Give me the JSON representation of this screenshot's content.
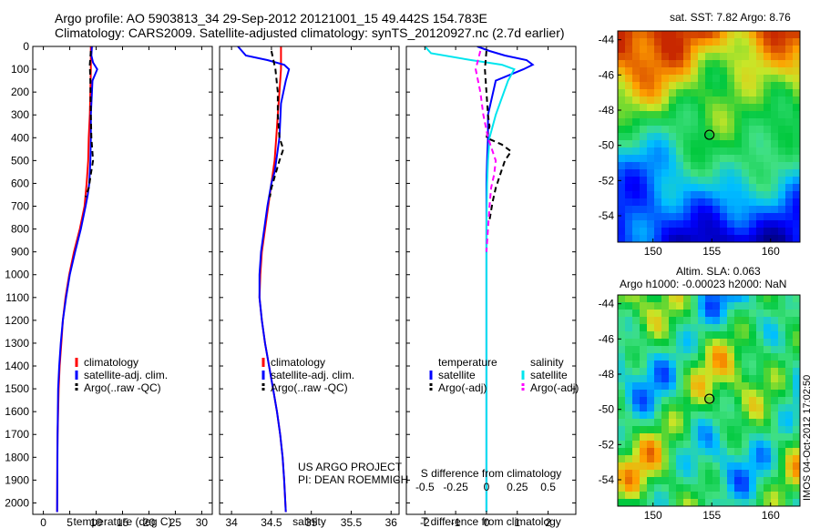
{
  "header": {
    "title_line1": "Argo profile: AO 5903813_34 29-Sep-2012 20121001_15 49.442S 154.783E",
    "title_line2": "Climatology: CARS2009. Satellite-adjusted climatology: synTS_20120927.nc (2.7d earlier)"
  },
  "colors": {
    "climatology": "#ff0000",
    "satellite": "#0000ff",
    "argo": "#000000",
    "salinity_satellite": "#00e5ee",
    "salinity_argo": "#ff00ff"
  },
  "chart_data": [
    {
      "type": "line",
      "panel": "temperature",
      "xlabel": "temperature (deg C)",
      "xticks": [
        "0",
        "5",
        "10",
        "15",
        "20",
        "25",
        "30"
      ],
      "xlim": [
        -2,
        32
      ],
      "ylim": [
        2050,
        0
      ],
      "yticks": [
        "0",
        "100",
        "200",
        "300",
        "400",
        "500",
        "600",
        "700",
        "800",
        "900",
        "1000",
        "1100",
        "1200",
        "1300",
        "1400",
        "1500",
        "1600",
        "1700",
        "1800",
        "1900",
        "2000"
      ],
      "y_inverted": true,
      "legend": [
        "climatology",
        "satellite-adj. clim.",
        "Argo(..raw -QC)"
      ],
      "legend_position": "lower-right",
      "series": [
        {
          "name": "climatology",
          "style": "solid",
          "color": "#ff0000",
          "x": [
            9.0,
            9.0,
            8.9,
            8.8,
            8.6,
            8.5,
            8.2,
            7.8,
            6.9,
            5.8,
            4.9,
            4.2,
            3.7,
            3.4,
            3.1,
            2.9,
            2.8,
            2.7,
            2.65,
            2.6
          ],
          "y": [
            0,
            100,
            200,
            300,
            400,
            500,
            600,
            700,
            800,
            900,
            1000,
            1100,
            1200,
            1300,
            1400,
            1500,
            1600,
            1700,
            1800,
            2040
          ]
        },
        {
          "name": "satellite-adj. clim.",
          "style": "solid",
          "color": "#0000ff",
          "x": [
            9.2,
            9.1,
            9.4,
            10.2,
            9.3,
            9.0,
            9.0,
            8.9,
            8.7,
            8.4,
            8.0,
            7.1,
            6.0,
            5.0,
            4.3,
            3.7,
            3.3,
            3.0,
            2.8,
            2.7,
            2.6
          ],
          "y": [
            0,
            40,
            70,
            100,
            150,
            300,
            400,
            500,
            600,
            650,
            700,
            800,
            900,
            1000,
            1100,
            1200,
            1300,
            1400,
            1500,
            1700,
            2040
          ]
        },
        {
          "name": "Argo(..raw -QC)",
          "style": "dashed",
          "color": "#000000",
          "x": [
            9.0,
            8.8,
            8.9,
            9.0,
            9.1,
            9.4,
            9.0,
            8.6,
            8.0
          ],
          "y": [
            20,
            80,
            150,
            300,
            400,
            500,
            560,
            620,
            660
          ]
        }
      ]
    },
    {
      "type": "line",
      "panel": "salinity",
      "xlabel": "salinity",
      "xticks": [
        "34",
        "34.5",
        "35",
        "35.5",
        "36"
      ],
      "xlim": [
        33.85,
        36.1
      ],
      "ylim": [
        2050,
        0
      ],
      "y_inverted": true,
      "legend": [
        "climatology",
        "satellite-adj. clim.",
        "Argo(..raw -QC)"
      ],
      "legend_position": "lower-right",
      "annotation": [
        "US ARGO PROJECT",
        "PI: DEAN ROEMMICH"
      ],
      "series": [
        {
          "name": "climatology",
          "style": "solid",
          "color": "#ff0000",
          "x": [
            34.62,
            34.62,
            34.6,
            34.58,
            34.56,
            34.54,
            34.5,
            34.46,
            34.42,
            34.38,
            34.36,
            34.35,
            34.38,
            34.42,
            34.47,
            34.52,
            34.57,
            34.61,
            34.64,
            34.66,
            34.68
          ],
          "y": [
            0,
            100,
            200,
            300,
            400,
            500,
            600,
            700,
            800,
            900,
            1000,
            1100,
            1200,
            1300,
            1400,
            1500,
            1600,
            1700,
            1800,
            1900,
            2040
          ]
        },
        {
          "name": "satellite-adj. clim.",
          "style": "solid",
          "color": "#0000ff",
          "x": [
            34.08,
            34.18,
            34.45,
            34.66,
            34.72,
            34.68,
            34.62,
            34.6,
            34.56,
            34.54,
            34.5,
            34.45,
            34.41,
            34.37,
            34.35,
            34.35,
            34.38,
            34.42,
            34.47,
            34.52,
            34.57,
            34.61,
            34.64,
            34.66,
            34.68
          ],
          "y": [
            0,
            40,
            60,
            80,
            100,
            150,
            250,
            400,
            500,
            550,
            600,
            700,
            800,
            900,
            1000,
            1100,
            1200,
            1300,
            1400,
            1500,
            1600,
            1700,
            1800,
            1900,
            2040
          ]
        },
        {
          "name": "Argo(..raw -QC)",
          "style": "dashed",
          "color": "#000000",
          "x": [
            34.5,
            34.55,
            34.58,
            34.58,
            34.6,
            34.65,
            34.6,
            34.55,
            34.5,
            34.48
          ],
          "y": [
            20,
            100,
            200,
            300,
            400,
            450,
            500,
            560,
            620,
            660
          ]
        }
      ]
    },
    {
      "type": "line",
      "panel": "differences",
      "xlabel": "T difference from climatology",
      "xlabel_top": "S difference from climatology",
      "xticks": [
        "-2",
        "-1",
        "0",
        "1",
        "2"
      ],
      "xticks_top": [
        "-0.5",
        "-0.25",
        "0",
        "0.25",
        "0.5"
      ],
      "xlim": [
        -2.6,
        2.9
      ],
      "ylim": [
        2050,
        0
      ],
      "y_inverted": true,
      "legend_temperature_title": "temperature",
      "legend_salinity_title": "salinity",
      "legend_temperature": [
        "satellite",
        "Argo(-adj)"
      ],
      "legend_salinity": [
        "satellite",
        "Argo(-adj)"
      ],
      "series": [
        {
          "name": "satellite",
          "group": "temperature",
          "style": "solid",
          "color": "#0000ff",
          "x": [
            -0.3,
            0.1,
            0.6,
            1.3,
            1.5,
            1.2,
            0.3,
            0.05,
            0.05,
            0.02,
            0.0,
            0.0,
            0.0,
            0.0,
            0.0,
            0.0,
            0.0,
            0.0,
            0.0,
            0.0,
            0.0
          ],
          "y": [
            0,
            20,
            40,
            60,
            80,
            100,
            150,
            300,
            400,
            500,
            600,
            700,
            800,
            900,
            1000,
            1200,
            1400,
            1600,
            1800,
            1900,
            2040
          ]
        },
        {
          "name": "satellite",
          "group": "salinity",
          "style": "solid",
          "color": "#00e5ee",
          "x": [
            -2.0,
            -1.8,
            -0.5,
            0.5,
            0.9,
            0.7,
            0.3,
            0.1,
            0.05,
            0.02,
            0.0,
            0.0,
            0.0,
            0.0,
            0.0
          ],
          "y": [
            0,
            30,
            60,
            80,
            100,
            150,
            300,
            400,
            500,
            600,
            800,
            1000,
            1400,
            1800,
            2040
          ]
        },
        {
          "name": "Argo(-adj)",
          "group": "temperature",
          "style": "dashed",
          "color": "#000000",
          "x": [
            0.0,
            -0.05,
            0.0,
            0.05,
            0.1,
            0.0,
            0.5,
            0.8,
            0.6,
            0.45,
            0.3,
            0.2,
            0.1
          ],
          "y": [
            20,
            100,
            200,
            300,
            350,
            400,
            430,
            460,
            500,
            560,
            620,
            680,
            760
          ]
        },
        {
          "name": "Argo(-adj)",
          "group": "salinity",
          "style": "dashed",
          "color": "#ff00ff",
          "x": [
            -0.2,
            -0.35,
            -0.2,
            -0.1,
            0.05,
            0.2,
            0.3,
            0.25,
            0.15,
            0.1,
            0.05,
            0.0
          ],
          "y": [
            20,
            100,
            200,
            300,
            400,
            460,
            500,
            560,
            620,
            700,
            800,
            900
          ]
        }
      ]
    }
  ],
  "maps": [
    {
      "title": "sat. SST: 7.82  Argo: 8.76",
      "xticks": [
        "150",
        "155",
        "160"
      ],
      "yticks": [
        "-44",
        "-46",
        "-48",
        "-50",
        "-52",
        "-54"
      ],
      "lon_range": [
        147,
        162.5
      ],
      "lat_range": [
        -55.5,
        -43.5
      ],
      "argo_marker": {
        "lon": 154.8,
        "lat": -49.4
      }
    },
    {
      "title_line1": "Altim. SLA: 0.063",
      "title_line2": "Argo h1000: -0.00023 h2000: NaN",
      "xticks": [
        "150",
        "155",
        "160"
      ],
      "yticks": [
        "-44",
        "-46",
        "-48",
        "-50",
        "-52",
        "-54"
      ],
      "lon_range": [
        147,
        162.5
      ],
      "lat_range": [
        -55.5,
        -43.5
      ],
      "argo_marker": {
        "lon": 154.8,
        "lat": -49.4
      }
    }
  ],
  "footer": {
    "stamp": "IMOS 04-Oct-2012 17:02:50"
  }
}
